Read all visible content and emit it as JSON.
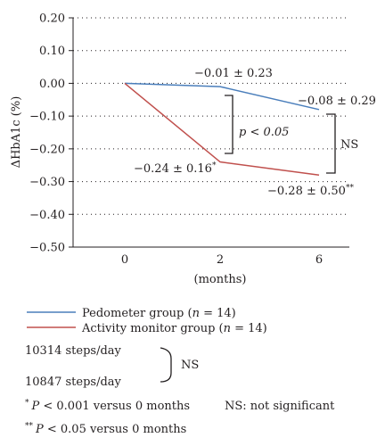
{
  "chart_data": {
    "type": "line",
    "ylabel": "ΔHbA1c (%)",
    "xlabel": "(months)",
    "x_ticks": [
      "0",
      "2",
      "6"
    ],
    "y_ticks": [
      "0.20",
      "0.10",
      "0.00",
      "−0.10",
      "−0.20",
      "−0.30",
      "−0.40",
      "−0.50"
    ],
    "ylim": [
      -0.5,
      0.2
    ],
    "grid": "dotted horizontal",
    "series": [
      {
        "name": "Pedometer group (n = 14)",
        "color": "#4a7ebb",
        "values": [
          0.0,
          -0.01,
          -0.08
        ]
      },
      {
        "name": "Activity monitor group (n = 14)",
        "color": "#c0504d",
        "values": [
          0.0,
          -0.24,
          -0.28
        ]
      }
    ],
    "annotations": {
      "ped_2": "−0.01 ± 0.23",
      "ped_6": "−0.08 ± 0.29",
      "act_2": "−0.24 ± 0.16",
      "act_2_mark": "*",
      "act_6": "−0.28 ± 0.50",
      "act_6_mark": "**",
      "bracket_2": "p < 0.05",
      "bracket_6": "NS"
    }
  },
  "legend": {
    "ped_label_prefix": "Pedometer group (",
    "act_label_prefix": "Activity monitor group (",
    "n_var": "n",
    "n_value": " = 14)"
  },
  "steps": {
    "pedometer": "10314 steps/day",
    "activity": "10847 steps/day",
    "ns": "NS"
  },
  "footnotes": {
    "one_mark": "*",
    "one_p": "P",
    "one_text": " < 0.001 versus 0 months",
    "ns_def": "NS: not significant",
    "two_mark": "**",
    "two_p": "P",
    "two_text": " < 0.05 versus 0 months"
  }
}
